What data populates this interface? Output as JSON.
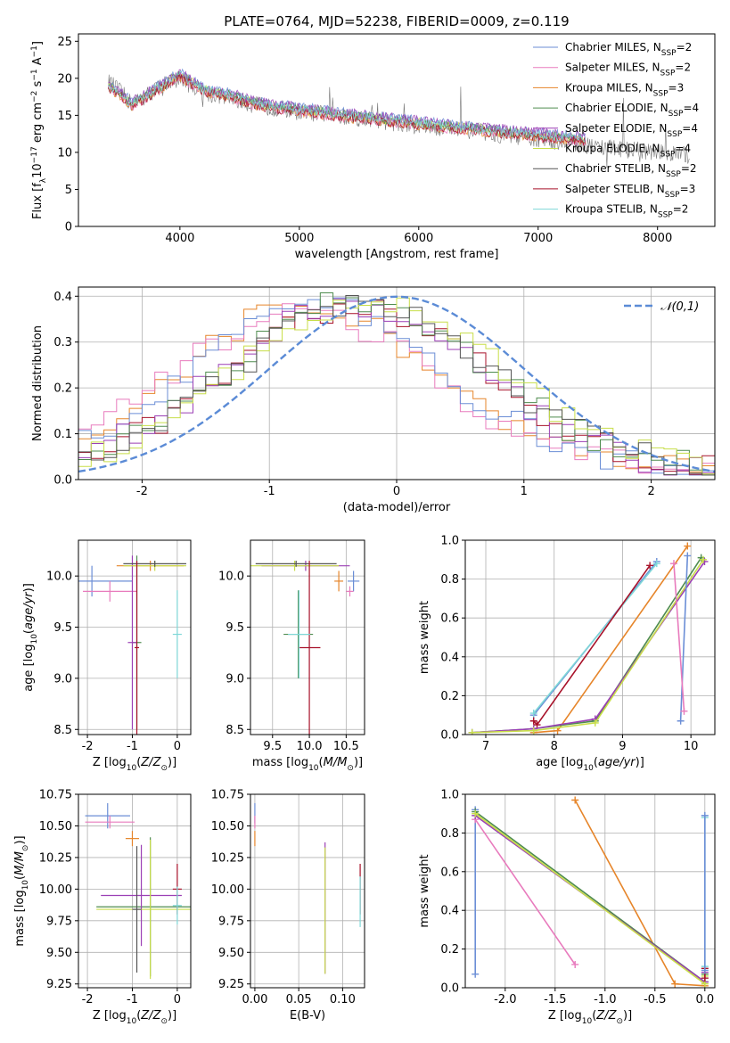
{
  "title": "PLATE=0764, MJD=52238, FIBERID=0009, z=0.119",
  "model_names": [
    "Chabrier MILES",
    "Salpeter MILES",
    "Kroupa MILES",
    "Chabrier ELODIE",
    "Salpeter ELODIE",
    "Kroupa ELODIE",
    "Chabrier STELIB",
    "Salpeter STELIB",
    "Kroupa STELIB"
  ],
  "model_nssp": [
    2,
    2,
    3,
    4,
    4,
    4,
    2,
    3,
    2
  ],
  "model_colors": [
    "#6b8ed6",
    "#e87bbd",
    "#e6852a",
    "#4f8c4f",
    "#9b3fb5",
    "#c8de49",
    "#555555",
    "#a8122a",
    "#7fd8d8"
  ],
  "legend_prefix": "N",
  "legend_sub": "SSP",
  "chart_data": [
    {
      "type": "line",
      "panel": "spectrum",
      "xlabel": "wavelength [Angstrom, rest frame]",
      "ylabel": "Flux [f_λ 10^-17 erg cm^-2 s^-1 A^-1]",
      "xlim": [
        3150,
        8480
      ],
      "ylim": [
        0,
        26
      ],
      "xticks": [
        4000,
        5000,
        6000,
        7000,
        8000
      ],
      "yticks": [
        0,
        5,
        10,
        15,
        20,
        25
      ],
      "data_x": [
        3400,
        3480,
        3600,
        3700,
        3800,
        3900,
        4000,
        4100,
        4200,
        4400,
        4600,
        4800,
        5000,
        5200,
        5400,
        5600,
        5800,
        6000,
        6200,
        6400,
        6600,
        6800,
        7000,
        7200,
        7400,
        7600,
        7800,
        8000,
        8200,
        8270
      ],
      "data_y": [
        19.5,
        18.5,
        16.5,
        17.5,
        18.5,
        19.5,
        20.0,
        19.0,
        18.0,
        17.5,
        16.5,
        16.0,
        15.5,
        15.2,
        14.8,
        14.5,
        14.0,
        13.6,
        13.3,
        13.0,
        12.6,
        12.2,
        11.8,
        11.4,
        11.0,
        10.6,
        10.3,
        10.0,
        9.7,
        9.6
      ],
      "model_x": [
        3400,
        3500,
        3600,
        3700,
        3800,
        3900,
        4000,
        4100,
        4200,
        4400,
        4600,
        4800,
        5000,
        5200,
        5400,
        5600,
        5800,
        6000,
        6200,
        6400,
        6600,
        6800,
        7000,
        7200,
        7400
      ],
      "model_y": [
        19.0,
        18.0,
        16.5,
        17.5,
        18.5,
        19.5,
        20.5,
        19.5,
        18.5,
        17.8,
        16.8,
        16.2,
        15.8,
        15.4,
        15.0,
        14.7,
        14.3,
        14.0,
        13.6,
        13.3,
        13.0,
        12.7,
        12.4,
        12.1,
        11.8
      ]
    },
    {
      "type": "line",
      "panel": "residual distribution",
      "xlabel": "(data-model)/error",
      "ylabel": "Normed distribution",
      "xlim": [
        -2.5,
        2.5
      ],
      "ylim": [
        0,
        0.42
      ],
      "xticks": [
        -2,
        -1,
        0,
        1,
        2
      ],
      "yticks": [
        0.0,
        0.1,
        0.2,
        0.3,
        0.4
      ],
      "legend": "𝒩(0,1)",
      "series": [
        {
          "color": "#e6852a",
          "mean": -0.7,
          "peak": 0.36
        },
        {
          "color": "#e87bbd",
          "mean": -0.75,
          "peak": 0.35
        },
        {
          "color": "#6b8ed6",
          "mean": -0.65,
          "peak": 0.36
        },
        {
          "color": "#a8122a",
          "mean": -0.3,
          "peak": 0.36
        },
        {
          "color": "#9b3fb5",
          "mean": -0.35,
          "peak": 0.36
        },
        {
          "color": "#4f8c4f",
          "mean": -0.3,
          "peak": 0.37
        },
        {
          "color": "#c8de49",
          "mean": -0.2,
          "peak": 0.38
        },
        {
          "color": "#555555",
          "mean": -0.25,
          "peak": 0.36
        }
      ]
    },
    {
      "type": "scatter",
      "panel": "age vs Z",
      "xlabel": "Z [log10(Z/Z⊙)]",
      "ylabel": "age  [log10(age/yr)]",
      "xlim": [
        -2.2,
        0.3
      ],
      "ylim": [
        8.45,
        10.35
      ],
      "xticks": [
        -2,
        -1,
        0
      ],
      "yticks": [
        8.5,
        9.0,
        9.5,
        10.0
      ],
      "points": [
        {
          "color": "#6b8ed6",
          "x": -1.9,
          "xerr": 0.9,
          "y": 9.95,
          "yerr": 0.15
        },
        {
          "color": "#e87bbd",
          "x": -1.5,
          "xerr": 0.6,
          "y": 9.85,
          "yerr": 0.1
        },
        {
          "color": "#e6852a",
          "x": -0.6,
          "xerr": 0.75,
          "y": 10.1,
          "yerr": 0.05
        },
        {
          "color": "#4f8c4f",
          "x": -0.9,
          "xerr": 0.1,
          "y": 9.35,
          "yerr": 0.85
        },
        {
          "color": "#9b3fb5",
          "x": -1.0,
          "xerr": 0.1,
          "y": 9.35,
          "yerr": 0.85
        },
        {
          "color": "#c8de49",
          "x": -0.5,
          "xerr": 0.7,
          "y": 10.1,
          "yerr": 0.05
        },
        {
          "color": "#555555",
          "x": -0.5,
          "xerr": 0.7,
          "y": 10.12,
          "yerr": 0.03
        },
        {
          "color": "#a8122a",
          "x": -0.9,
          "xerr": 0.05,
          "y": 9.3,
          "yerr": 0.85
        },
        {
          "color": "#7fd8d8",
          "x": 0.0,
          "xerr": 0.1,
          "y": 9.43,
          "yerr": 0.43
        }
      ]
    },
    {
      "type": "scatter",
      "panel": "age vs mass",
      "xlabel": "mass [log10(M/M⊙)]",
      "ylabel": "",
      "xlim": [
        9.2,
        10.75
      ],
      "ylim": [
        8.45,
        10.35
      ],
      "xticks": [
        9.5,
        10.0,
        10.5
      ],
      "yticks": [
        8.5,
        9.0,
        9.5,
        10.0
      ],
      "points": [
        {
          "color": "#6b8ed6",
          "x": 10.6,
          "xerr": 0.08,
          "y": 9.95,
          "yerr": 0.1
        },
        {
          "color": "#e87bbd",
          "x": 10.55,
          "xerr": 0.05,
          "y": 9.85,
          "yerr": 0.05
        },
        {
          "color": "#e6852a",
          "x": 10.4,
          "xerr": 0.06,
          "y": 9.95,
          "yerr": 0.1
        },
        {
          "color": "#4f8c4f",
          "x": 9.85,
          "xerr": 0.2,
          "y": 9.43,
          "yerr": 0.43
        },
        {
          "color": "#9b3fb5",
          "x": 9.95,
          "xerr": 0.6,
          "y": 10.1,
          "yerr": 0.05
        },
        {
          "color": "#c8de49",
          "x": 9.8,
          "xerr": 0.6,
          "y": 10.1,
          "yerr": 0.05
        },
        {
          "color": "#555555",
          "x": 9.82,
          "xerr": 0.55,
          "y": 10.12,
          "yerr": 0.03
        },
        {
          "color": "#a8122a",
          "x": 10.0,
          "xerr": 0.15,
          "y": 9.3,
          "yerr": 0.85
        },
        {
          "color": "#7fd8d8",
          "x": 9.86,
          "xerr": 0.15,
          "y": 9.43,
          "yerr": 0.43
        }
      ]
    },
    {
      "type": "line",
      "panel": "mass weight vs age",
      "xlabel": "age  [log10(age/yr)]",
      "ylabel": "mass weight",
      "xlim": [
        6.7,
        10.35
      ],
      "ylim": [
        0,
        1
      ],
      "xticks": [
        7,
        8,
        9,
        10
      ],
      "yticks": [
        0.0,
        0.2,
        0.4,
        0.6,
        0.8,
        1.0
      ],
      "series": [
        {
          "color": "#6b8ed6",
          "x": [
            7.7,
            9.5
          ],
          "y": [
            0.1,
            0.89
          ]
        },
        {
          "color": "#7fd8d8",
          "x": [
            7.7,
            9.5
          ],
          "y": [
            0.11,
            0.88
          ]
        },
        {
          "color": "#a8122a",
          "x": [
            7.7,
            7.75,
            9.4
          ],
          "y": [
            0.07,
            0.05,
            0.87
          ]
        },
        {
          "color": "#e6852a",
          "x": [
            7.7,
            8.05,
            9.95
          ],
          "y": [
            0.01,
            0.02,
            0.97
          ]
        },
        {
          "color": "#4f8c4f",
          "x": [
            6.8,
            7.7,
            8.6,
            10.15
          ],
          "y": [
            0.01,
            0.03,
            0.07,
            0.91
          ]
        },
        {
          "color": "#9b3fb5",
          "x": [
            6.8,
            7.7,
            8.6,
            10.2
          ],
          "y": [
            0.01,
            0.03,
            0.08,
            0.89
          ]
        },
        {
          "color": "#c8de49",
          "x": [
            6.8,
            7.7,
            8.6,
            10.18
          ],
          "y": [
            0.01,
            0.02,
            0.06,
            0.9
          ]
        },
        {
          "color": "#6b8ed6",
          "x": [
            9.85,
            9.95
          ],
          "y": [
            0.07,
            0.92
          ]
        },
        {
          "color": "#e87bbd",
          "x": [
            9.75,
            9.9
          ],
          "y": [
            0.88,
            0.12
          ]
        }
      ]
    },
    {
      "type": "scatter",
      "panel": "mass vs Z",
      "xlabel": "Z [log10(Z/Z⊙)]",
      "ylabel": "mass [log10(M/M⊙)]",
      "xlim": [
        -2.2,
        0.3
      ],
      "ylim": [
        9.22,
        10.75
      ],
      "xticks": [
        -2,
        -1,
        0
      ],
      "yticks": [
        9.25,
        9.5,
        9.75,
        10.0,
        10.25,
        10.5,
        10.75
      ],
      "points": [
        {
          "color": "#6b8ed6",
          "x": -1.55,
          "xerr": 0.5,
          "y": 10.58,
          "yerr": 0.1
        },
        {
          "color": "#e87bbd",
          "x": -1.5,
          "xerr": 0.55,
          "y": 10.53,
          "yerr": 0.05
        },
        {
          "color": "#e6852a",
          "x": -1.0,
          "xerr": 0.15,
          "y": 10.4,
          "yerr": 0.06
        },
        {
          "color": "#4f8c4f",
          "x": -0.6,
          "xerr": 1.2,
          "y": 9.86,
          "yerr": 0.55
        },
        {
          "color": "#9b3fb5",
          "x": -0.8,
          "xerr": 0.9,
          "y": 9.95,
          "yerr": 0.4
        },
        {
          "color": "#c8de49",
          "x": -0.6,
          "xerr": 1.2,
          "y": 9.84,
          "yerr": 0.55
        },
        {
          "color": "#555555",
          "x": -0.9,
          "xerr": 0.1,
          "y": 9.84,
          "yerr": 0.5
        },
        {
          "color": "#a8122a",
          "x": 0.0,
          "xerr": 0.1,
          "y": 10.0,
          "yerr": 0.2
        },
        {
          "color": "#7fd8d8",
          "x": 0.0,
          "xerr": 0.1,
          "y": 9.87,
          "yerr": 0.15
        }
      ]
    },
    {
      "type": "scatter",
      "panel": "mass vs E(B-V)",
      "xlabel": "E(B-V)",
      "ylabel": "",
      "xlim": [
        -0.005,
        0.125
      ],
      "ylim": [
        9.22,
        10.75
      ],
      "xticks": [
        0.0,
        0.05,
        0.1
      ],
      "yticks": [
        9.25,
        9.5,
        9.75,
        10.0,
        10.25,
        10.5,
        10.75
      ],
      "points": [
        {
          "color": "#6b8ed6",
          "x": 0.0,
          "y": 10.6,
          "yerr": 0.08
        },
        {
          "color": "#e87bbd",
          "x": 0.0,
          "y": 10.53,
          "yerr": 0.05
        },
        {
          "color": "#e6852a",
          "x": 0.0,
          "y": 10.4,
          "yerr": 0.06
        },
        {
          "color": "#9b3fb5",
          "x": 0.08,
          "y": 9.85,
          "yerr": 0.52
        },
        {
          "color": "#c8de49",
          "x": 0.08,
          "y": 9.83,
          "yerr": 0.5
        },
        {
          "color": "#a8122a",
          "x": 0.12,
          "y": 10.0,
          "yerr": 0.2
        },
        {
          "color": "#7fd8d8",
          "x": 0.12,
          "y": 9.9,
          "yerr": 0.2
        }
      ]
    },
    {
      "type": "line",
      "panel": "mass weight vs Z",
      "xlabel": "Z [log10(Z/Z⊙)]",
      "ylabel": "mass weight",
      "xlim": [
        -2.4,
        0.1
      ],
      "ylim": [
        0,
        1
      ],
      "xticks": [
        -2.0,
        -1.5,
        -1.0,
        -0.5,
        0.0
      ],
      "yticks": [
        0.0,
        0.2,
        0.4,
        0.6,
        0.8,
        1.0
      ],
      "series": [
        {
          "color": "#6b8ed6",
          "x": [
            -2.3,
            -2.3
          ],
          "y": [
            0.07,
            0.92
          ]
        },
        {
          "color": "#e87bbd",
          "x": [
            -2.3,
            -1.3
          ],
          "y": [
            0.87,
            0.12
          ]
        },
        {
          "color": "#e6852a",
          "x": [
            -1.3,
            -0.3,
            0.0
          ],
          "y": [
            0.97,
            0.02,
            0.01
          ]
        },
        {
          "color": "#4f8c4f",
          "x": [
            -2.3,
            0.0,
            0.0
          ],
          "y": [
            0.91,
            0.03,
            0.07
          ]
        },
        {
          "color": "#9b3fb5",
          "x": [
            -2.3,
            0.0,
            0.0
          ],
          "y": [
            0.89,
            0.03,
            0.08
          ]
        },
        {
          "color": "#c8de49",
          "x": [
            -2.3,
            0.0,
            0.0
          ],
          "y": [
            0.9,
            0.02,
            0.06
          ]
        },
        {
          "color": "#a8122a",
          "x": [
            0.0,
            0.0
          ],
          "y": [
            0.05,
            0.1
          ]
        },
        {
          "color": "#7fd8d8",
          "x": [
            0.0,
            0.0
          ],
          "y": [
            0.11,
            0.88
          ]
        },
        {
          "color": "#6b8ed6",
          "x": [
            0.0,
            0.0
          ],
          "y": [
            0.09,
            0.89
          ]
        }
      ]
    }
  ]
}
